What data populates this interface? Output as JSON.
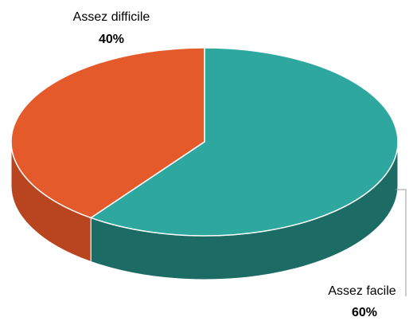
{
  "chart_data": {
    "type": "pie",
    "categories": [
      "Assez facile",
      "Assez difficile"
    ],
    "values": [
      60,
      40
    ],
    "value_labels": [
      "60%",
      "40%"
    ],
    "colors": [
      "#2ea89f",
      "#e55a2b"
    ],
    "side_colors": [
      "#1d6b65",
      "#b8451f"
    ]
  }
}
